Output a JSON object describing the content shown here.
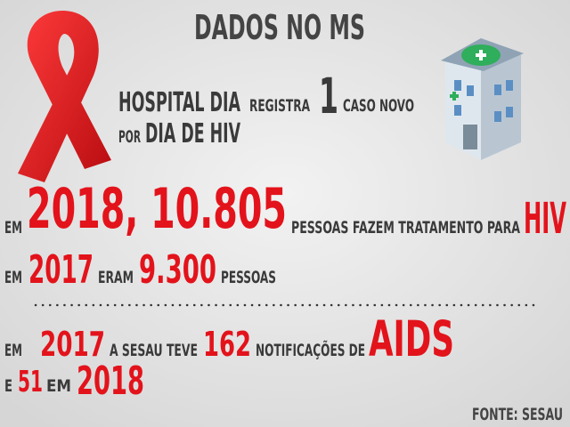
{
  "title": "DADOS NO MS",
  "lines": [
    [
      "HOSPITAL DIA",
      "REGISTRA",
      "1",
      "CASO NOVO"
    ],
    [
      "POR",
      "DIA DE HIV"
    ],
    [
      "EM",
      "2018, 10.805",
      "PESSOAS FAZEM TRATAMENTO PARA",
      "HIV"
    ],
    [
      "EM",
      "2017",
      "ERAM",
      "9.300",
      "PESSOAS"
    ],
    [
      "EM",
      "2017",
      "A SESAU TEVE",
      "162",
      "NOTIFICAÇÕES DE",
      "AIDS"
    ],
    [
      "E",
      "51",
      "EM",
      "2018"
    ]
  ],
  "source": "FONTE: SESAU"
}
